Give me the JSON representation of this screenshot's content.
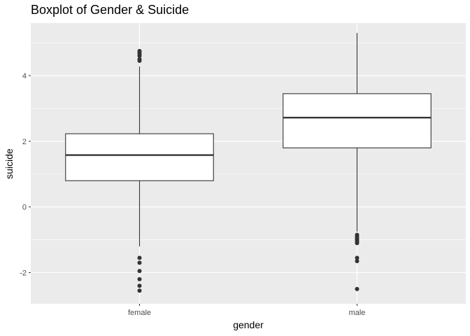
{
  "chart_data": {
    "type": "boxplot",
    "title": "Boxplot of Gender & Suicide",
    "xlabel": "gender",
    "ylabel": "suicide",
    "categories": [
      "female",
      "male"
    ],
    "ylim": [
      -2.95,
      5.6
    ],
    "yticks": [
      -2,
      0,
      2,
      4
    ],
    "grid": true,
    "panel_color": "#ebebeb",
    "grid_color": "#ffffff",
    "box_fill": "#ffffff",
    "box_stroke": "#333333",
    "boxes": [
      {
        "name": "female",
        "whisker_low": -1.2,
        "q1": 0.8,
        "median": 1.58,
        "q3": 2.23,
        "whisker_high": 4.28,
        "outliers": [
          4.75,
          4.7,
          4.65,
          4.6,
          4.5,
          4.45,
          -1.55,
          -1.7,
          -1.95,
          -2.2,
          -2.4,
          -2.55
        ]
      },
      {
        "name": "male",
        "whisker_low": -0.75,
        "q1": 1.8,
        "median": 2.72,
        "q3": 3.45,
        "whisker_high": 5.3,
        "outliers": [
          -0.85,
          -0.9,
          -0.95,
          -1.0,
          -1.05,
          -1.1,
          -1.55,
          -1.65,
          -2.5
        ]
      }
    ]
  }
}
